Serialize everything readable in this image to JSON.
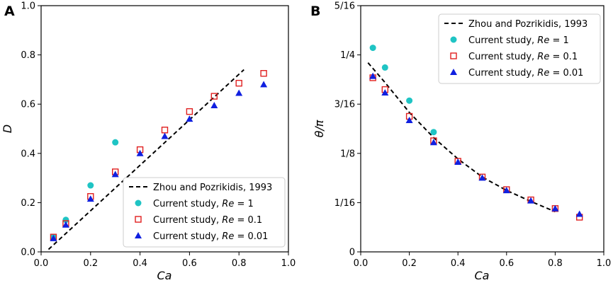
{
  "chart_data": [
    {
      "panel": "A",
      "type": "scatter",
      "xlabel": "Ca",
      "ylabel": "D",
      "xlim": [
        0.0,
        1.0
      ],
      "ylim": [
        0.0,
        1.0
      ],
      "xticks": [
        0.0,
        0.2,
        0.4,
        0.6,
        0.8,
        1.0
      ],
      "xtick_labels": [
        "0.0",
        "0.2",
        "0.4",
        "0.6",
        "0.8",
        "1.0"
      ],
      "yticks": [
        0.0,
        0.2,
        0.4,
        0.6,
        0.8,
        1.0
      ],
      "ytick_labels": [
        "0.0",
        "0.2",
        "0.4",
        "0.6",
        "0.8",
        "1.0"
      ],
      "legend_position": "bottom-right",
      "series": [
        {
          "name": "Zhou and Pozrikidis, 1993",
          "kind": "dashed-line",
          "color": "#000000",
          "x": [
            0.03,
            0.82
          ],
          "y": [
            0.01,
            0.74
          ]
        },
        {
          "name": "Current study, Re = 1",
          "kind": "circle",
          "color": "#1fc4c4",
          "x": [
            0.05,
            0.1,
            0.2,
            0.3
          ],
          "y": [
            0.06,
            0.13,
            0.27,
            0.445
          ]
        },
        {
          "name": "Current study, Re = 0.1",
          "kind": "square",
          "color": "#e02020",
          "x": [
            0.05,
            0.1,
            0.2,
            0.3,
            0.4,
            0.5,
            0.6,
            0.7,
            0.8,
            0.9
          ],
          "y": [
            0.06,
            0.115,
            0.225,
            0.325,
            0.415,
            0.495,
            0.57,
            0.632,
            0.685,
            0.725
          ]
        },
        {
          "name": "Current study, Re = 0.01",
          "kind": "triangle",
          "color": "#1020e0",
          "x": [
            0.05,
            0.1,
            0.2,
            0.3,
            0.4,
            0.5,
            0.6,
            0.7,
            0.8,
            0.9
          ],
          "y": [
            0.055,
            0.11,
            0.215,
            0.315,
            0.4,
            0.47,
            0.54,
            0.595,
            0.645,
            0.68
          ]
        }
      ]
    },
    {
      "panel": "B",
      "type": "scatter",
      "xlabel": "Ca",
      "ylabel": "θ/π",
      "xlim": [
        0.0,
        1.0
      ],
      "ylim": [
        0.0,
        0.3125
      ],
      "xticks": [
        0.0,
        0.2,
        0.4,
        0.6,
        0.8,
        1.0
      ],
      "xtick_labels": [
        "0.0",
        "0.2",
        "0.4",
        "0.6",
        "0.8",
        "1.0"
      ],
      "yticks": [
        0.0,
        0.0625,
        0.125,
        0.1875,
        0.25,
        0.3125
      ],
      "ytick_labels": [
        "0",
        "1/16",
        "1/8",
        "3/16",
        "1/4",
        "5/16"
      ],
      "legend_position": "top-right",
      "series": [
        {
          "name": "Zhou and Pozrikidis, 1993",
          "kind": "dashed-line",
          "color": "#000000",
          "x": [
            0.03,
            0.1,
            0.2,
            0.3,
            0.4,
            0.5,
            0.6,
            0.7,
            0.8
          ],
          "y": [
            0.24,
            0.215,
            0.177,
            0.145,
            0.118,
            0.095,
            0.078,
            0.064,
            0.051
          ]
        },
        {
          "name": "Current study, Re = 1",
          "kind": "circle",
          "color": "#1fc4c4",
          "x": [
            0.05,
            0.1,
            0.2,
            0.3
          ],
          "y": [
            0.259,
            0.234,
            0.192,
            0.152
          ]
        },
        {
          "name": "Current study, Re = 0.1",
          "kind": "square",
          "color": "#e02020",
          "x": [
            0.05,
            0.1,
            0.2,
            0.3,
            0.4,
            0.5,
            0.6,
            0.7,
            0.8,
            0.9
          ],
          "y": [
            0.221,
            0.206,
            0.172,
            0.141,
            0.115,
            0.095,
            0.079,
            0.066,
            0.055,
            0.044
          ]
        },
        {
          "name": "Current study, Re = 0.01",
          "kind": "triangle",
          "color": "#1020e0",
          "x": [
            0.05,
            0.1,
            0.2,
            0.3,
            0.4,
            0.5,
            0.6,
            0.7,
            0.8,
            0.9
          ],
          "y": [
            0.223,
            0.202,
            0.167,
            0.139,
            0.114,
            0.094,
            0.078,
            0.065,
            0.055,
            0.048
          ]
        }
      ]
    }
  ],
  "panels": [
    {
      "label": "A",
      "xlabel": "Ca",
      "ylabel": "D",
      "legend": {
        "line": "Zhou and Pozrikidis, 1993",
        "re1_prefix": "Current study, ",
        "re1_var": "Re",
        "re1_val": " = 1",
        "re01_prefix": "Current study, ",
        "re01_var": "Re",
        "re01_val": " = 0.1",
        "re001_prefix": "Current study, ",
        "re001_var": "Re",
        "re001_val": " = 0.01"
      }
    },
    {
      "label": "B",
      "xlabel": "Ca",
      "ylabel": "θ/π",
      "legend": {
        "line": "Zhou and Pozrikidis, 1993",
        "re1_prefix": "Current study, ",
        "re1_var": "Re",
        "re1_val": " = 1",
        "re01_prefix": "Current study, ",
        "re01_var": "Re",
        "re01_val": " = 0.1",
        "re001_prefix": "Current study, ",
        "re001_var": "Re",
        "re001_val": " = 0.01"
      }
    }
  ]
}
